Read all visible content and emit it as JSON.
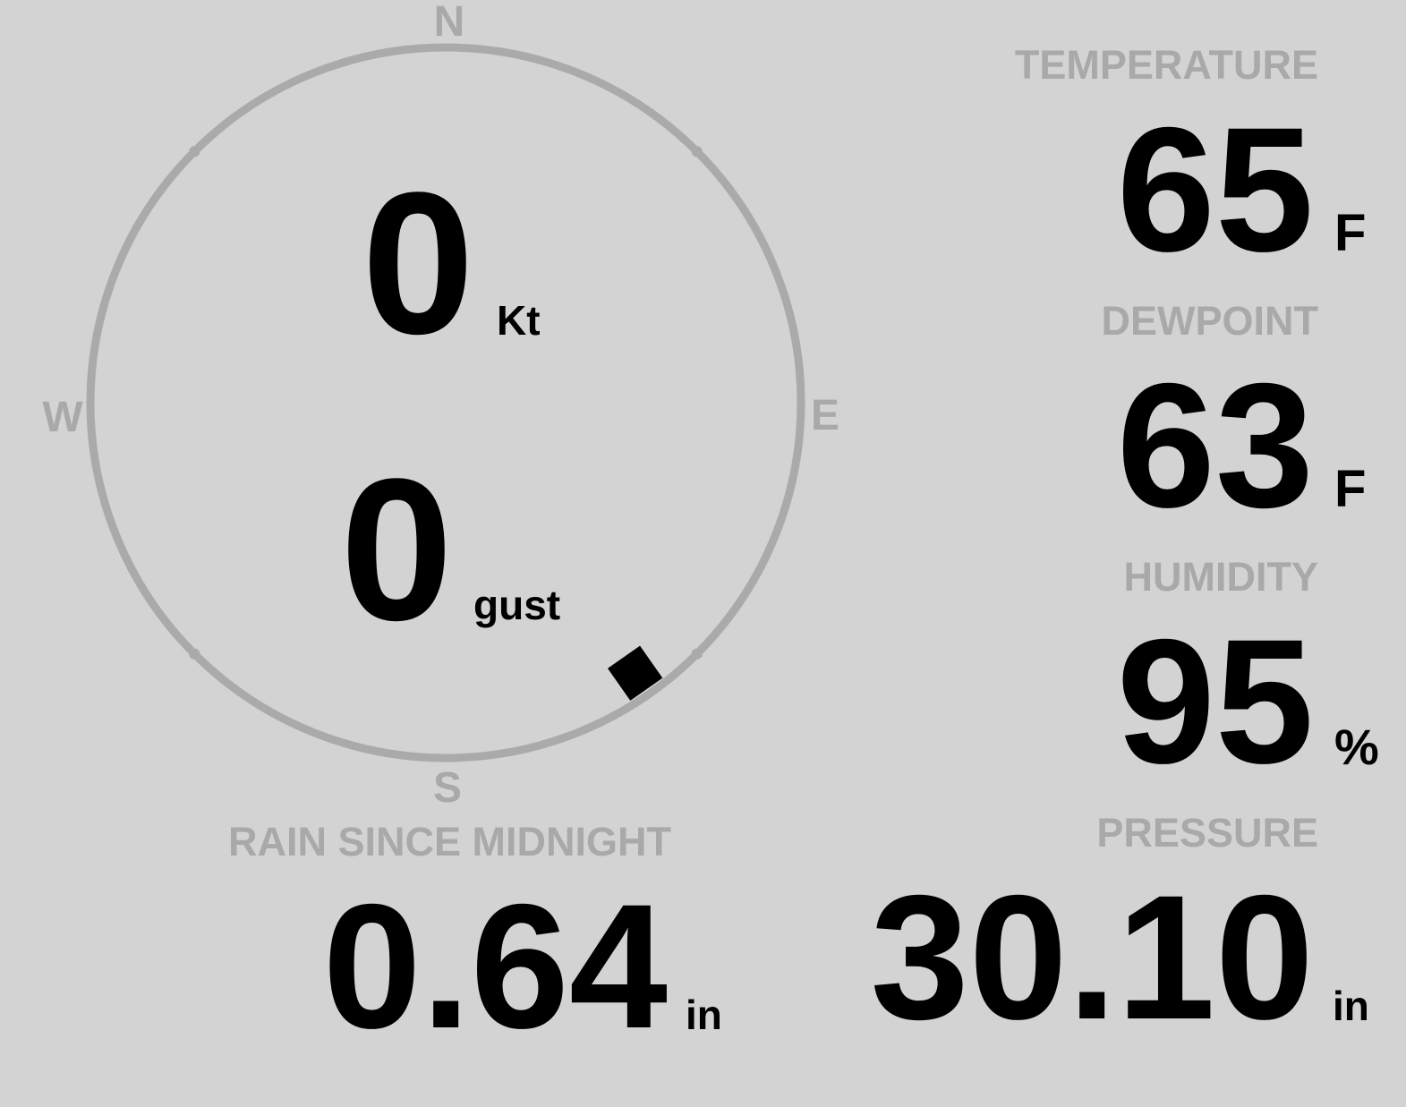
{
  "colors": {
    "background": "#d3d3d3",
    "label": "#a9a9a9",
    "value": "#000000",
    "compass_ring": "#aaaaaa"
  },
  "compass": {
    "north": "N",
    "east": "E",
    "south": "S",
    "west": "W",
    "wind_direction_deg": 145,
    "wind_speed": "0",
    "wind_speed_unit": "Kt",
    "gust": "0",
    "gust_unit": "gust"
  },
  "temperature": {
    "label": "TEMPERATURE",
    "value": "65",
    "unit": "F"
  },
  "dewpoint": {
    "label": "DEWPOINT",
    "value": "63",
    "unit": "F"
  },
  "humidity": {
    "label": "HUMIDITY",
    "value": "95",
    "unit": "%"
  },
  "rain": {
    "label": "RAIN SINCE MIDNIGHT",
    "value": "0.64",
    "unit": "in"
  },
  "pressure": {
    "label": "PRESSURE",
    "value": "30.10",
    "unit": "in"
  }
}
